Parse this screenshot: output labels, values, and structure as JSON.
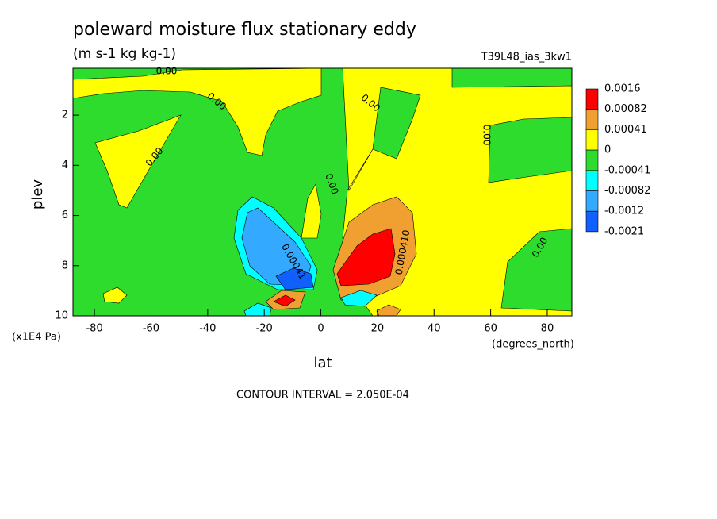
{
  "chart_data": {
    "type": "contour",
    "title": "poleward moisture flux stationary eddy",
    "subtitle": "(m s-1 kg kg-1)",
    "dataset": "T39L48_ias_3kw1",
    "x_label": "lat",
    "x_units": "(degrees_north)",
    "y_label": "plev",
    "y_units": "(x1E4 Pa)",
    "note": "CONTOUR INTERVAL = 2.050E-04",
    "xlim": [
      -87.6,
      88.7
    ],
    "xticks": [
      -80,
      -60,
      -40,
      -20,
      0,
      20,
      40,
      60,
      80
    ],
    "ylim": [
      10,
      0.13
    ],
    "yticks": [
      2,
      4,
      6,
      8,
      10
    ],
    "levels": [
      0.0016,
      0.00082,
      0.00041,
      0,
      -0.00041,
      -0.00082,
      -0.0012,
      -0.0021
    ],
    "colors": [
      "#ff0000",
      "#f0a030",
      "#ffff00",
      "#2ddc2d",
      "#00ffff",
      "#33aaff",
      "#1060ff"
    ],
    "contour_labels": [
      "0.00",
      "0.00",
      "0.00",
      "0.00",
      "0.00",
      "0.00",
      "0.00",
      "0.00041",
      "0.000410"
    ]
  }
}
